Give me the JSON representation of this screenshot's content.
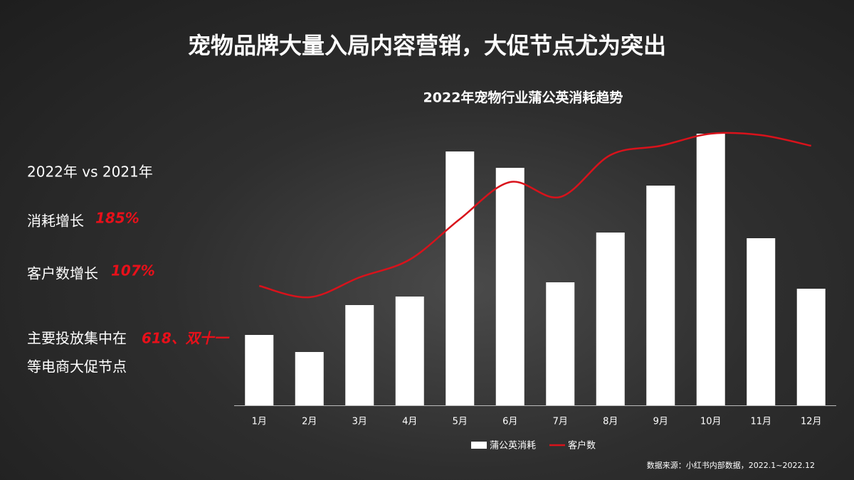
{
  "header": {
    "title": "宠物品牌大量入局内容营销，大促节点尤为突出"
  },
  "sidebar": {
    "compare": "2022年 vs 2021年",
    "spend_label": "消耗增长",
    "spend_growth": "185%",
    "customer_label": "客户数增长",
    "customer_growth": "107%",
    "focus_prefix": "主要投放集中在",
    "focus_highlight": "618、双十一",
    "focus_suffix": "等电商大促节点"
  },
  "chart_data": {
    "type": "bar",
    "title": "2022年宠物行业蒲公英消耗趋势",
    "categories": [
      "1月",
      "2月",
      "3月",
      "4月",
      "5月",
      "6月",
      "7月",
      "8月",
      "9月",
      "10月",
      "11月",
      "12月"
    ],
    "series": [
      {
        "name": "蒲公英消耗",
        "color": "#ffffff",
        "values": [
          99,
          75,
          141,
          153,
          357,
          334,
          173,
          243,
          309,
          382,
          235,
          164
        ]
      },
      {
        "name": "客户数",
        "color": "#d9121b",
        "type": "line",
        "values": [
          168,
          152,
          180,
          205,
          262,
          314,
          293,
          352,
          365,
          382,
          380,
          365
        ]
      }
    ]
  },
  "source": "数据来源：小红书内部数据，2022.1~2022.12"
}
